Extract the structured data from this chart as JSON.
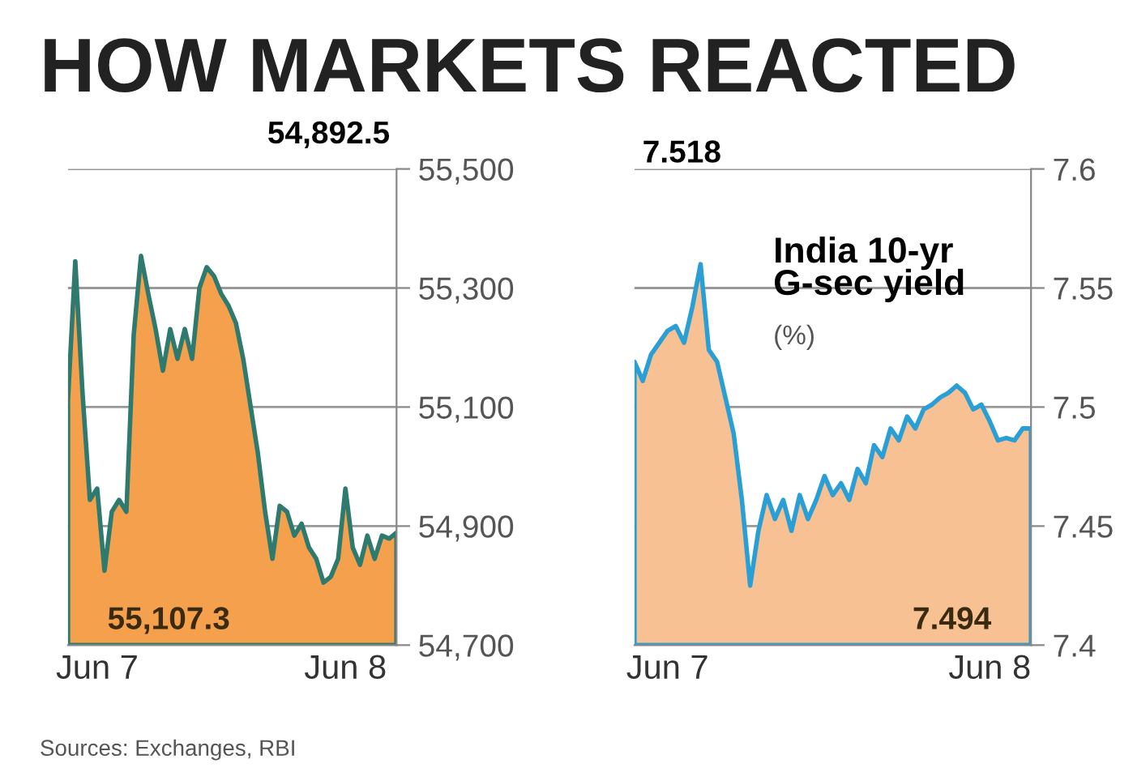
{
  "chart_data": [
    {
      "type": "area",
      "title": "HOW MARKETS REACTED",
      "annotations": [
        "54,892.5",
        "55,107.3",
        "Sources: Exchanges, RBI"
      ],
      "categories": [
        null,
        null,
        null,
        null,
        "Jun 7",
        null,
        null,
        null,
        null,
        null,
        null,
        null,
        null,
        null,
        null,
        null,
        null,
        null,
        null,
        null,
        null,
        null,
        null,
        null,
        null,
        null,
        null,
        null,
        null,
        null,
        null,
        null,
        null,
        null,
        null,
        null,
        null,
        null,
        "Jun 8",
        null,
        null,
        null,
        null,
        null,
        null,
        null
      ],
      "series": [
        {
          "color": "#f5a04c",
          "values": [
            55112,
            55345,
            55122,
            54944,
            54963,
            54825,
            54924,
            54944,
            54924,
            55221,
            55354,
            55290,
            55231,
            55161,
            55231,
            55181,
            55231,
            55181,
            55300,
            55335,
            55320,
            55290,
            55270,
            55241,
            55181,
            55102,
            55023,
            54924,
            54845,
            54934,
            54924,
            54884,
            54904,
            54864,
            54845,
            54805,
            54815,
            54845,
            54963,
            54864,
            54835,
            54884,
            54845,
            54884,
            54879,
            54889
          ]
        }
      ],
      "ylim": [
        54700,
        55500
      ],
      "yticks": [
        {
          "value": 54700,
          "label": "54,700"
        },
        {
          "value": 54900,
          "label": "54,900"
        },
        {
          "value": 55100,
          "label": "55,100"
        },
        {
          "value": 55300,
          "label": "55,300"
        },
        {
          "value": 55500,
          "label": "55,500"
        }
      ],
      "grid": "y",
      "legend": false
    },
    {
      "type": "area",
      "title": "India 10-yr G-sec yield",
      "subtitle": "(%)",
      "annotations": [
        "7.518",
        "7.494"
      ],
      "categories": [
        null,
        null,
        null,
        null,
        "Jun 7",
        null,
        null,
        null,
        null,
        null,
        null,
        null,
        null,
        null,
        null,
        null,
        null,
        null,
        null,
        null,
        null,
        null,
        null,
        null,
        null,
        null,
        null,
        null,
        null,
        null,
        null,
        null,
        null,
        null,
        null,
        null,
        null,
        null,
        null,
        null,
        null,
        null,
        null,
        "Jun 8",
        null,
        null,
        null,
        null,
        null
      ],
      "series": [
        {
          "color": "#f8c193",
          "values": [
            7.519,
            7.511,
            7.522,
            7.527,
            7.532,
            7.534,
            7.527,
            7.542,
            7.56,
            7.524,
            7.519,
            7.504,
            7.489,
            7.461,
            7.425,
            7.448,
            7.463,
            7.453,
            7.461,
            7.448,
            7.463,
            7.453,
            7.461,
            7.471,
            7.463,
            7.468,
            7.461,
            7.474,
            7.468,
            7.484,
            7.479,
            7.491,
            7.486,
            7.496,
            7.491,
            7.499,
            7.501,
            7.504,
            7.506,
            7.509,
            7.506,
            7.499,
            7.501,
            7.494,
            7.486,
            7.487,
            7.486,
            7.491,
            7.491
          ]
        }
      ],
      "ylim": [
        7.4,
        7.6
      ],
      "yticks": [
        7.4,
        7.45,
        7.5,
        7.55,
        7.6
      ],
      "grid": "y",
      "legend": false
    }
  ]
}
